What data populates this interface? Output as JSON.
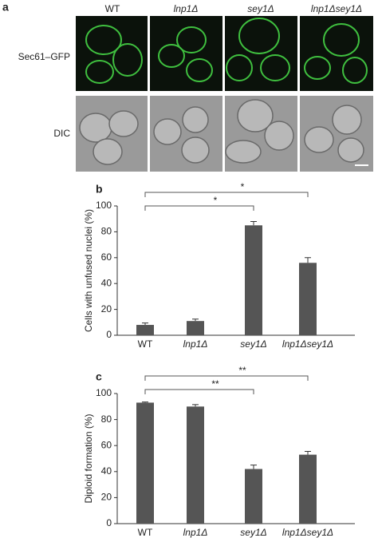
{
  "panel_a": {
    "label": "a",
    "columns": [
      "WT",
      "lnp1Δ",
      "sey1Δ",
      "lnp1Δsey1Δ"
    ],
    "rows": [
      "Sec61–GFP",
      "DIC"
    ]
  },
  "chart_data": [
    {
      "type": "bar",
      "label": "b",
      "y_label": "Cells with unfused nuclei (%)",
      "categories": [
        "WT",
        "lnp1Δ",
        "sey1Δ",
        "lnp1Δsey1Δ"
      ],
      "values": [
        8,
        11,
        85,
        56
      ],
      "errors": [
        1.5,
        1.5,
        3,
        4
      ],
      "color": "#555555",
      "ylim": [
        0,
        100
      ],
      "yticks": [
        0,
        20,
        40,
        60,
        80,
        100
      ],
      "annotations": [
        "*",
        "*"
      ]
    },
    {
      "type": "bar",
      "label": "c",
      "y_label": "Diploid formation (%)",
      "categories": [
        "WT",
        "lnp1Δ",
        "sey1Δ",
        "lnp1Δsey1Δ"
      ],
      "values": [
        93,
        90,
        42,
        53
      ],
      "errors": [
        0.5,
        1.5,
        3,
        2.5
      ],
      "color": "#555555",
      "ylim": [
        0,
        100
      ],
      "yticks": [
        0,
        20,
        40,
        60,
        80,
        100
      ],
      "annotations": [
        "**",
        "**"
      ]
    }
  ]
}
